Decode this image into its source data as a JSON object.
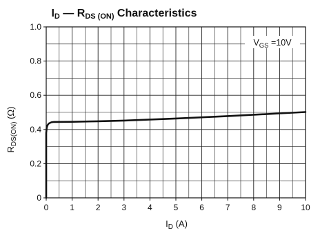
{
  "chart_data": {
    "type": "line",
    "title": {
      "main": "I",
      "main_sub": "D",
      "dash": " — R",
      "dash_sub": "DS (ON)",
      "rest": "  Characteristics"
    },
    "xlabel": {
      "main": "I",
      "sub": "D",
      "unit": " (A)"
    },
    "ylabel": {
      "main": "R",
      "sub": "DS(ON)",
      "unit": "  (Ω)"
    },
    "annotation": {
      "main": "V",
      "sub": "GS",
      "rest": " =10V"
    },
    "xlim": [
      0,
      10
    ],
    "ylim": [
      0,
      1.0
    ],
    "x_ticks": [
      0,
      1,
      2,
      3,
      4,
      5,
      6,
      7,
      8,
      9,
      10
    ],
    "x_tick_labels": [
      "0",
      "1",
      "2",
      "3",
      "4",
      "5",
      "6",
      "7",
      "8",
      "9",
      "10"
    ],
    "y_ticks": [
      0,
      0.2,
      0.4,
      0.6,
      0.8,
      1.0
    ],
    "y_tick_labels": [
      "0",
      "0.2",
      "0.4",
      "0.6",
      "0.8",
      "1.0"
    ],
    "x_minor_step": 0.5,
    "y_minor_step": 0.1,
    "grid": true,
    "series": [
      {
        "x": [
          0,
          0,
          0.02,
          0.05,
          0.1,
          0.2,
          0.3,
          1,
          2,
          3,
          4,
          5,
          6,
          7,
          8,
          9,
          10
        ],
        "y": [
          0,
          0.38,
          0.41,
          0.425,
          0.435,
          0.442,
          0.444,
          0.445,
          0.448,
          0.452,
          0.458,
          0.464,
          0.471,
          0.478,
          0.486,
          0.494,
          0.502
        ]
      }
    ],
    "line_color": "#111111",
    "grid_color": "#222222"
  }
}
